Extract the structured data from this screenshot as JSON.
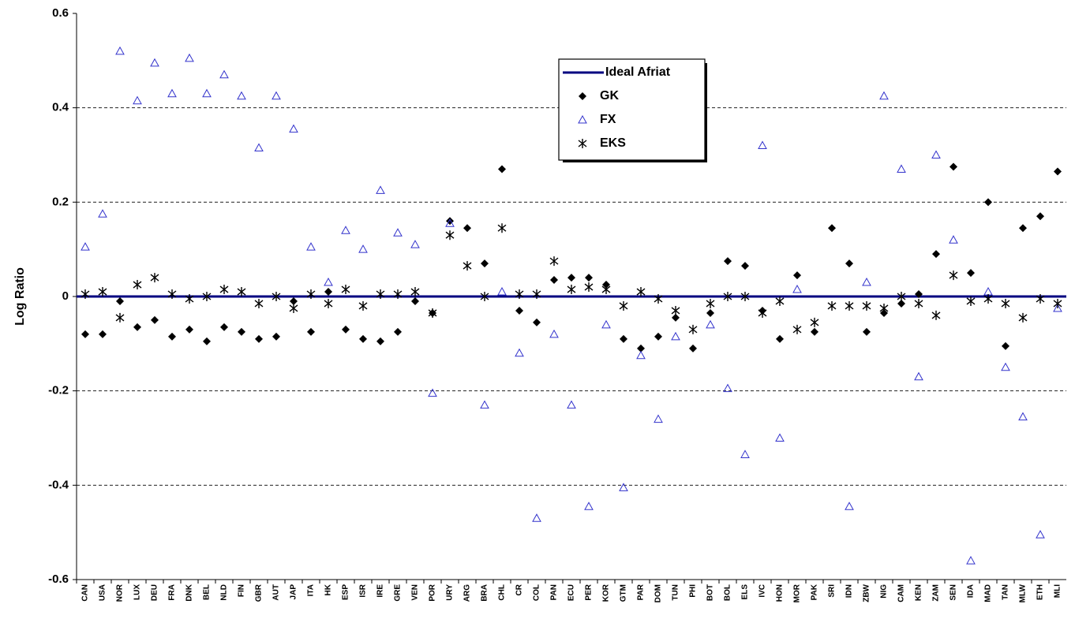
{
  "chart_data": {
    "type": "scatter",
    "y_label": "Log Ratio",
    "categories": [
      "CAN",
      "USA",
      "NOR",
      "LUX",
      "DEU",
      "FRA",
      "DNK",
      "BEL",
      "NLD",
      "FIN",
      "GBR",
      "AUT",
      "JAP",
      "ITA",
      "HK",
      "ESP",
      "ISR",
      "IRE",
      "GRE",
      "VEN",
      "POR",
      "URY",
      "ARG",
      "BRA",
      "CHL",
      "CR",
      "COL",
      "PAN",
      "ECU",
      "PER",
      "KOR",
      "GTM",
      "PAR",
      "DOM",
      "TUN",
      "PHI",
      "BOT",
      "BOL",
      "ELS",
      "IVC",
      "HON",
      "MOR",
      "PAK",
      "SRI",
      "IDN",
      "ZBW",
      "NIG",
      "CAM",
      "KEN",
      "ZAM",
      "SEN",
      "IDA",
      "MAD",
      "TAN",
      "MLW",
      "ETH",
      "MLI"
    ],
    "series": [
      {
        "name": "Ideal Afriat",
        "color": "#000080",
        "marker": "line",
        "values": [
          0,
          0,
          0,
          0,
          0,
          0,
          0,
          0,
          0,
          0,
          0,
          0,
          0,
          0,
          0,
          0,
          0,
          0,
          0,
          0,
          0,
          0,
          0,
          0,
          0,
          0,
          0,
          0,
          0,
          0,
          0,
          0,
          0,
          0,
          0,
          0,
          0,
          0,
          0,
          0,
          0,
          0,
          0,
          0,
          0,
          0,
          0,
          0,
          0,
          0,
          0,
          0,
          0,
          0,
          0,
          0,
          0
        ]
      },
      {
        "name": "GK",
        "color": "#000000",
        "marker": "diamond",
        "values": [
          -0.08,
          -0.08,
          -0.01,
          -0.065,
          -0.05,
          -0.085,
          -0.07,
          -0.095,
          -0.065,
          -0.075,
          -0.09,
          -0.085,
          -0.01,
          -0.075,
          0.01,
          -0.07,
          -0.09,
          -0.095,
          -0.075,
          -0.01,
          -0.035,
          0.16,
          0.145,
          0.07,
          0.27,
          -0.03,
          -0.055,
          0.035,
          0.04,
          0.04,
          0.025,
          -0.09,
          -0.11,
          -0.085,
          -0.045,
          -0.11,
          -0.035,
          0.075,
          0.065,
          -0.03,
          -0.09,
          0.045,
          -0.075,
          0.145,
          0.07,
          -0.075,
          -0.035,
          -0.015,
          0.005,
          0.09,
          0.275,
          0.05,
          0.2,
          -0.105,
          0.145,
          0.17,
          0.265
        ]
      },
      {
        "name": "FX",
        "color": "#3333cc",
        "marker": "triangle",
        "values": [
          0.105,
          0.175,
          0.52,
          0.415,
          0.495,
          0.43,
          0.505,
          0.43,
          0.47,
          0.425,
          0.315,
          0.425,
          0.355,
          0.105,
          0.03,
          0.14,
          0.1,
          0.225,
          0.135,
          0.11,
          -0.205,
          0.155,
          null,
          -0.23,
          0.01,
          -0.12,
          -0.47,
          -0.08,
          -0.23,
          -0.445,
          -0.06,
          -0.405,
          -0.125,
          -0.26,
          -0.085,
          null,
          -0.06,
          -0.195,
          -0.335,
          0.32,
          -0.3,
          0.015,
          null,
          null,
          -0.445,
          0.03,
          0.425,
          0.27,
          -0.17,
          0.3,
          0.12,
          -0.56,
          0.01,
          -0.15,
          -0.255,
          -0.505,
          -0.025
        ]
      },
      {
        "name": "EKS",
        "color": "#000000",
        "marker": "asterisk",
        "values": [
          0.005,
          0.01,
          -0.045,
          0.025,
          0.04,
          0.005,
          -0.005,
          0,
          0.015,
          0.01,
          -0.015,
          0,
          -0.025,
          0.005,
          -0.015,
          0.015,
          -0.02,
          0.005,
          0.005,
          0.01,
          -0.035,
          0.13,
          0.065,
          0,
          0.145,
          0.005,
          0.005,
          0.075,
          0.015,
          0.02,
          0.015,
          -0.02,
          0.01,
          -0.005,
          -0.03,
          -0.07,
          -0.015,
          0,
          0,
          -0.035,
          -0.01,
          -0.07,
          -0.055,
          -0.02,
          -0.02,
          -0.02,
          -0.025,
          0,
          -0.015,
          -0.04,
          0.045,
          -0.01,
          -0.005,
          -0.015,
          -0.045,
          -0.005,
          -0.015
        ]
      }
    ],
    "ylim": [
      -0.6,
      0.6
    ],
    "yticks": [
      -0.6,
      -0.4,
      -0.2,
      0,
      0.2,
      0.4,
      0.6
    ],
    "grid": true,
    "legend": "top-right"
  }
}
